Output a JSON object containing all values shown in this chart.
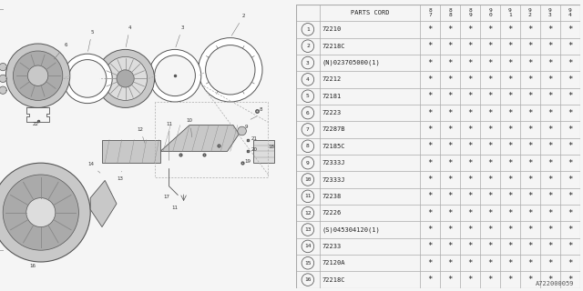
{
  "bg_color": "#f5f5f5",
  "table_bg": "#ffffff",
  "line_color": "#aaaaaa",
  "dark_line": "#666666",
  "text_color": "#222222",
  "footer_text": "A722000059",
  "parts_cord_header": "PARTS CORD",
  "year_headers": [
    "8\n7",
    "8\n8",
    "8\n9",
    "9\n0",
    "9\n1",
    "9\n2",
    "9\n3",
    "9\n4"
  ],
  "rows": [
    [
      "1",
      "72210"
    ],
    [
      "2",
      "72218C"
    ],
    [
      "3",
      "(N)023705000(1)"
    ],
    [
      "4",
      "72212"
    ],
    [
      "5",
      "72181"
    ],
    [
      "6",
      "72223"
    ],
    [
      "7",
      "72287B"
    ],
    [
      "8",
      "72185C"
    ],
    [
      "9",
      "72333J"
    ],
    [
      "10",
      "72333J"
    ],
    [
      "11",
      "72238"
    ],
    [
      "12",
      "72226"
    ],
    [
      "13",
      "(S)045304120(1)"
    ],
    [
      "14",
      "72233"
    ],
    [
      "15",
      "72120A"
    ],
    [
      "16",
      "72218C"
    ]
  ],
  "gray1": "#c8c8c8",
  "gray2": "#aaaaaa",
  "gray3": "#888888",
  "gray4": "#dddddd"
}
